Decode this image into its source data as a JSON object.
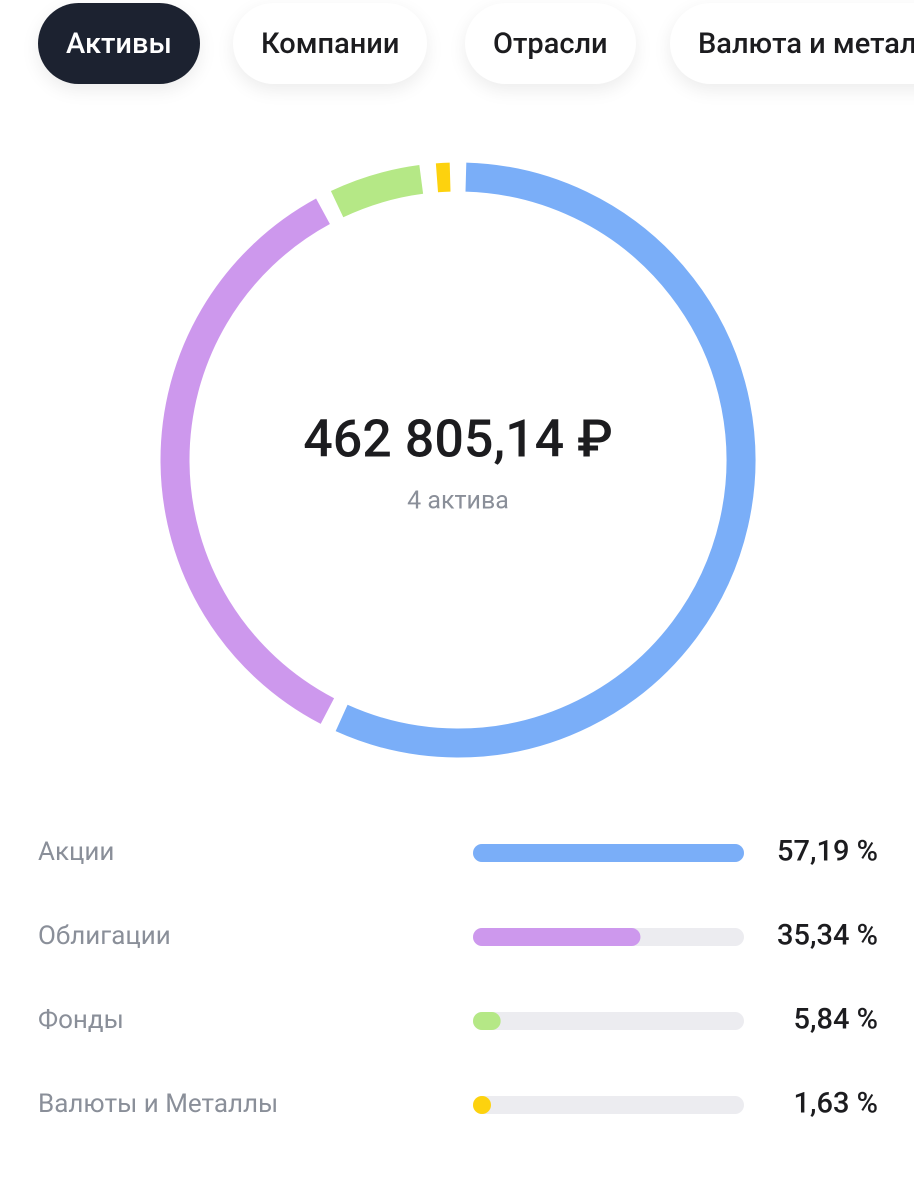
{
  "tabs": [
    {
      "label": "Активы",
      "active": true
    },
    {
      "label": "Компании",
      "active": false
    },
    {
      "label": "Отрасли",
      "active": false
    },
    {
      "label": "Валюта и металлы",
      "active": false
    }
  ],
  "chart_data": {
    "type": "donut",
    "total": "462 805,14 ₽",
    "subtitle": "4 актива",
    "categories": [
      "Акции",
      "Облигации",
      "Фонды",
      "Валюты и Металлы"
    ],
    "values": [
      57.19,
      35.34,
      5.84,
      1.63
    ],
    "value_labels": [
      "57,19 %",
      "35,34 %",
      "5,84 %",
      "1,63 %"
    ],
    "colors": [
      "#7aaef8",
      "#cd98ed",
      "#b5e886",
      "#fdd20e"
    ]
  }
}
